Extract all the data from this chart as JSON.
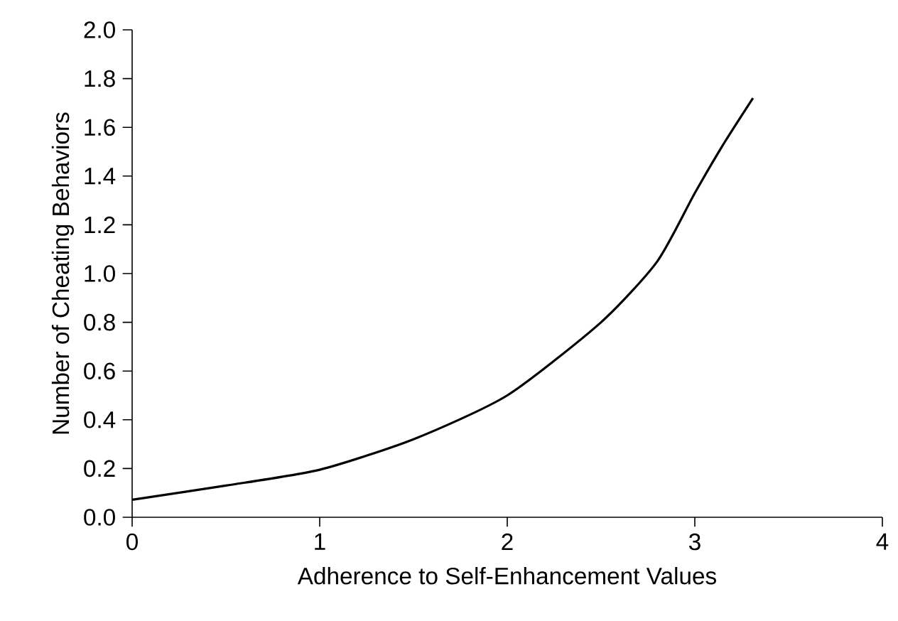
{
  "chart_data": {
    "type": "line",
    "xlabel": "Adherence to Self-Enhancement Values",
    "ylabel": "Number of Cheating Behaviors",
    "x": [
      0,
      0.5,
      1,
      1.5,
      2,
      2.5,
      2.8,
      3,
      3.16,
      3.31
    ],
    "series": [
      {
        "color": "#000000",
        "values": [
          0.072,
          0.13,
          0.195,
          0.32,
          0.5,
          0.8,
          1.05,
          1.33,
          1.54,
          1.72
        ]
      }
    ],
    "xlim": [
      0,
      4
    ],
    "ylim": [
      0,
      2
    ],
    "xticks": [
      0,
      1,
      2,
      3,
      4
    ],
    "yticks": [
      {
        "value": 0,
        "label": "0.0"
      },
      {
        "value": 0.2,
        "label": "0.2"
      },
      {
        "value": 0.4,
        "label": "0.4"
      },
      {
        "value": 0.6,
        "label": "0.6"
      },
      {
        "value": 0.8,
        "label": "0.8"
      },
      {
        "value": 1.0,
        "label": "1.0"
      },
      {
        "value": 1.2,
        "label": "1.2"
      },
      {
        "value": 1.4,
        "label": "1.4"
      },
      {
        "value": 1.6,
        "label": "1.6"
      },
      {
        "value": 1.8,
        "label": "1.8"
      },
      {
        "value": 2.0,
        "label": "2.0"
      }
    ]
  }
}
